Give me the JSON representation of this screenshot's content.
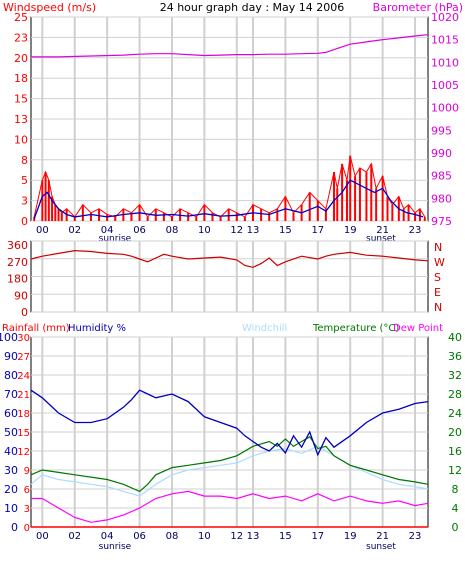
{
  "colors": {
    "windspeed": "#ff0000",
    "gust_fill": "#ff0000",
    "wind_avg": "#0000cc",
    "barometer": "#dd00dd",
    "direction": "#cc0000",
    "humidity": "#0000bb",
    "windchill": "#aaddff",
    "temperature": "#007700",
    "dewpoint": "#ff00ff",
    "rainfall": "#ff0000",
    "dir_labels": "#cc0000",
    "grid": "#d0d0d0",
    "frame": "#000000",
    "sunrise_sunset": "#000066"
  },
  "chart_data": [
    {
      "type": "line",
      "title": "24 hour graph day : May 14 2006",
      "left_axis_label": "Windspeed (m/s)",
      "right_axis_label": "Barometer (hPa)",
      "ylim_left": [
        0,
        25
      ],
      "ylim_right": [
        975,
        1020
      ],
      "yticks_left": [
        "0",
        "3",
        "5",
        "8",
        "10",
        "13",
        "15",
        "18",
        "20",
        "23",
        "25"
      ],
      "yticks_right": [
        "975",
        "980",
        "985",
        "990",
        "995",
        "1000",
        "1005",
        "1010",
        "1015",
        "1020"
      ],
      "x_tick_labels": [
        "00",
        "02",
        "04",
        "06",
        "08",
        "10",
        "12",
        "13",
        "15",
        "17",
        "19",
        "21",
        "23"
      ],
      "x_tick_hours": [
        0,
        2,
        4,
        6,
        8,
        10,
        12,
        13,
        15,
        17,
        19,
        21,
        23
      ],
      "sunrise_label": "sunrise",
      "sunset_label": "sunset",
      "sunrise_hour": 4.4,
      "sunset_hour": 20.9,
      "xlim_hours": [
        -0.7,
        23.8
      ],
      "series": [
        {
          "name": "Windspeed (m/s)",
          "axis": "left",
          "style": "gust",
          "x": [
            -0.5,
            0,
            0.2,
            0.4,
            0.6,
            0.8,
            1,
            1.2,
            1.5,
            2,
            2.5,
            3,
            3.5,
            4,
            4.5,
            5,
            5.5,
            6,
            6.5,
            7,
            7.5,
            8,
            8.5,
            9,
            9.5,
            10,
            10.5,
            11,
            11.5,
            12,
            12.5,
            13,
            13.5,
            14,
            14.5,
            15,
            15.5,
            16,
            16.5,
            17,
            17.5,
            18,
            18.2,
            18.5,
            18.8,
            19,
            19.3,
            19.6,
            20,
            20.3,
            20.6,
            21,
            21.3,
            21.6,
            22,
            22.3,
            22.6,
            23,
            23.3,
            23.6
          ],
          "y": [
            0.5,
            5,
            6,
            5,
            3,
            2,
            1.5,
            1,
            1.5,
            0.5,
            2,
            1,
            1.5,
            0.8,
            0.5,
            1.5,
            1,
            2,
            0.5,
            1.5,
            1,
            0.5,
            1.5,
            1,
            0.5,
            2,
            1,
            0.5,
            1.5,
            1,
            0.5,
            2,
            1.5,
            1,
            1.5,
            3,
            1,
            2,
            3.5,
            2.5,
            1.5,
            6,
            4,
            7,
            5,
            8,
            5.5,
            6.5,
            6,
            7,
            4,
            5.5,
            3,
            2,
            3,
            1.5,
            2,
            1,
            1.5,
            0.5
          ]
        },
        {
          "name": "Average wind",
          "axis": "left",
          "style": "line",
          "x": [
            -0.5,
            0,
            0.3,
            0.6,
            1,
            1.5,
            2,
            3,
            4,
            5,
            6,
            7,
            8,
            9,
            10,
            11,
            12,
            13,
            14,
            15,
            16,
            17,
            17.5,
            18,
            18.5,
            19,
            19.5,
            20,
            20.5,
            21,
            21.5,
            22,
            22.5,
            23,
            23.5
          ],
          "y": [
            0.3,
            3,
            3.5,
            2.5,
            1.5,
            0.8,
            0.5,
            0.8,
            0.5,
            0.8,
            1,
            0.7,
            0.8,
            0.6,
            0.9,
            0.6,
            0.7,
            1,
            0.8,
            1.5,
            1,
            1.8,
            1.2,
            2.5,
            3.5,
            5,
            4.5,
            4,
            3.5,
            4,
            2.5,
            1.5,
            1,
            0.8,
            0.5
          ]
        },
        {
          "name": "Barometer (hPa)",
          "axis": "right",
          "style": "line",
          "x": [
            -0.7,
            1,
            3,
            5,
            6,
            7,
            8,
            9,
            10,
            11,
            12,
            13,
            14,
            15,
            16,
            17,
            17.5,
            18,
            19,
            20,
            21,
            22,
            23,
            23.8
          ],
          "y": [
            1011.2,
            1011.2,
            1011.4,
            1011.6,
            1011.8,
            1011.9,
            1011.9,
            1011.7,
            1011.5,
            1011.6,
            1011.7,
            1011.7,
            1011.8,
            1011.8,
            1011.9,
            1012.0,
            1012.2,
            1012.8,
            1014.0,
            1014.5,
            1015.0,
            1015.4,
            1015.8,
            1016.1
          ]
        }
      ]
    },
    {
      "type": "line",
      "title": "",
      "ylim": [
        0,
        360
      ],
      "yticks_left": [
        "0",
        "90",
        "180",
        "270",
        "360"
      ],
      "direction_labels": [
        "N",
        "W",
        "S",
        "E",
        "N"
      ],
      "series": [
        {
          "name": "Wind direction",
          "style": "line",
          "x": [
            -0.7,
            0,
            1,
            2,
            3,
            4,
            5,
            5.5,
            6,
            6.5,
            7,
            7.5,
            8,
            9,
            10,
            11,
            12,
            12.5,
            13,
            13.5,
            14,
            14.5,
            15,
            16,
            17,
            17.5,
            18,
            19,
            20,
            21,
            22,
            23,
            23.8
          ],
          "y": [
            285,
            300,
            315,
            330,
            325,
            315,
            310,
            300,
            285,
            270,
            290,
            310,
            300,
            285,
            290,
            295,
            280,
            250,
            240,
            260,
            290,
            250,
            270,
            300,
            285,
            300,
            310,
            320,
            305,
            300,
            290,
            280,
            275
          ]
        }
      ]
    },
    {
      "type": "line",
      "title": "",
      "left_axis_label": "Rainfall (mm)",
      "humidity_label": "Humidity %",
      "windchill_label": "Windchill",
      "temperature_label": "Temperature (°C)",
      "dewpoint_label": "Dew Point",
      "ylim_left": [
        0,
        100
      ],
      "ylim_rain": [
        0,
        30
      ],
      "ylim_right": [
        0,
        40
      ],
      "yticks_left": [
        "0",
        "10",
        "20",
        "30",
        "40",
        "50",
        "60",
        "70",
        "80",
        "90",
        "100"
      ],
      "yticks_rain": [
        "0",
        "3",
        "6",
        "9",
        "12",
        "15",
        "18",
        "21",
        "24",
        "27",
        "30"
      ],
      "yticks_right": [
        "0",
        "4",
        "8",
        "12",
        "16",
        "20",
        "24",
        "28",
        "32",
        "36",
        "40"
      ],
      "series": [
        {
          "name": "Humidity %",
          "axis": "left",
          "style": "line",
          "x": [
            -0.7,
            0,
            1,
            2,
            3,
            4,
            5,
            5.5,
            6,
            6.5,
            7,
            8,
            9,
            10,
            11,
            12,
            12.5,
            13,
            13.5,
            14,
            14.5,
            15,
            15.5,
            16,
            16.5,
            17,
            17.5,
            18,
            19,
            20,
            21,
            22,
            23,
            23.8
          ],
          "y": [
            72,
            68,
            60,
            55,
            55,
            57,
            63,
            67,
            72,
            70,
            68,
            70,
            66,
            58,
            55,
            52,
            48,
            45,
            42,
            40,
            44,
            39,
            48,
            42,
            50,
            38,
            47,
            42,
            48,
            55,
            60,
            62,
            65,
            66
          ]
        },
        {
          "name": "Windchill",
          "axis": "right",
          "style": "line",
          "x": [
            -0.7,
            0,
            1,
            2,
            3,
            4,
            5,
            6,
            7,
            8,
            9,
            10,
            11,
            12,
            13,
            14,
            15,
            16,
            17,
            18,
            19,
            20,
            21,
            22,
            23,
            23.8
          ],
          "y": [
            9,
            11,
            10,
            9.5,
            9,
            8.5,
            7.5,
            6.5,
            9,
            11,
            12,
            12.5,
            13,
            13.5,
            15,
            16,
            16.5,
            15.5,
            17,
            15,
            13,
            11.5,
            10,
            9,
            8.5,
            8
          ]
        },
        {
          "name": "Temperature (°C)",
          "axis": "right",
          "style": "line",
          "x": [
            -0.7,
            0,
            1,
            2,
            3,
            4,
            5,
            6,
            6.5,
            7,
            8,
            9,
            10,
            11,
            12,
            13,
            13.5,
            14,
            14.5,
            15,
            15.5,
            16,
            16.5,
            17,
            17.5,
            18,
            19,
            20,
            21,
            22,
            23,
            23.8
          ],
          "y": [
            11,
            12,
            11.5,
            11,
            10.5,
            10,
            9,
            7.5,
            9,
            11,
            12.5,
            13,
            13.5,
            14,
            15,
            17,
            17.5,
            18,
            17,
            18.5,
            17,
            18,
            19,
            16.5,
            17,
            15,
            13,
            12,
            11,
            10,
            9.5,
            9
          ]
        },
        {
          "name": "Dew Point",
          "axis": "right",
          "style": "line",
          "x": [
            -0.7,
            0,
            1,
            2,
            3,
            4,
            5,
            6,
            7,
            8,
            9,
            10,
            11,
            12,
            13,
            14,
            15,
            16,
            17,
            18,
            19,
            20,
            21,
            22,
            23,
            23.8
          ],
          "y": [
            6,
            6,
            4,
            2,
            1,
            1.5,
            2.5,
            4,
            6,
            7,
            7.5,
            6.5,
            6.5,
            6,
            7,
            6,
            6.5,
            5.5,
            7,
            5.5,
            6.5,
            5.5,
            5,
            5.5,
            4.5,
            5
          ]
        },
        {
          "name": "Rainfall (mm)",
          "axis": "rain",
          "style": "line",
          "x": [
            -0.7,
            23.8
          ],
          "y": [
            0,
            0
          ]
        }
      ]
    }
  ]
}
